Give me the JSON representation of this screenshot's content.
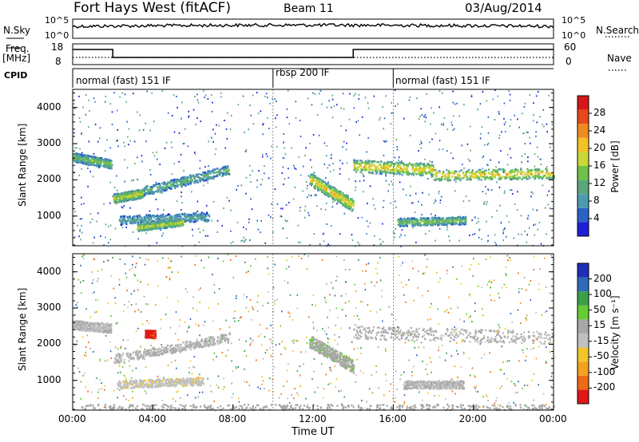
{
  "header": {
    "radar": "Fort Hays West (fitACF)",
    "beam": "Beam 11",
    "date": "03/Aug/2014"
  },
  "top_panels": {
    "nsky_label": "N.Sky",
    "nsearch_label": "N.Search",
    "noise_ticks_left": [
      "10^5",
      "10^0"
    ],
    "noise_ticks_right": [
      "10^5",
      "10^0"
    ],
    "freq_label_1": "Freq.",
    "freq_label_2": "[MHz]",
    "freq_ticks": [
      "18",
      "8"
    ],
    "nave_label": "Nave",
    "nave_ticks": [
      "60",
      "0"
    ],
    "cpid_label": "CPID",
    "cpid_segments": [
      {
        "label": "normal (fast) 151 IF",
        "start_hour": 0
      },
      {
        "label": "rbsp 200 IF",
        "start_hour": 10
      },
      {
        "label": "normal (fast) 151 IF",
        "start_hour": 16
      }
    ]
  },
  "colors": {
    "power": [
      "#1f1fd9",
      "#2a62c8",
      "#4c9ab0",
      "#5aa87a",
      "#6fc14a",
      "#c8d838",
      "#f2c224",
      "#f08a1e",
      "#e8481a",
      "#d81818"
    ],
    "velocity": [
      "#e01818",
      "#ee6a14",
      "#f2a21e",
      "#f2c628",
      "#c0c0c0",
      "#a8a8a8",
      "#66cc33",
      "#3aa04a",
      "#2c6aba",
      "#1f2fb8"
    ]
  },
  "chart_data": [
    {
      "type": "heatmap",
      "name_note": "Power panel",
      "xlabel": "",
      "ylabel": "Slant Range [km]",
      "xlim": [
        0,
        24
      ],
      "ylim": [
        180,
        4500
      ],
      "yticks": [
        "1000",
        "2000",
        "3000",
        "4000"
      ],
      "colorbar_label": "Power [dB]",
      "colorbar_ticks": [
        "4",
        "8",
        "12",
        "16",
        "20",
        "24",
        "28"
      ],
      "colorbar_range": [
        0,
        30
      ],
      "features": [
        {
          "t": [
            0.0,
            1.9
          ],
          "range_start": 2650,
          "range_end": 2450,
          "width": 250,
          "value": 14
        },
        {
          "t": [
            2.0,
            3.5
          ],
          "range_start": 1500,
          "range_end": 1650,
          "width": 250,
          "value": 18
        },
        {
          "t": [
            3.5,
            7.8
          ],
          "range_start": 1700,
          "range_end": 2300,
          "width": 250,
          "value": 12
        },
        {
          "t": [
            2.3,
            6.8
          ],
          "range_start": 900,
          "range_end": 1000,
          "width": 250,
          "value": 10
        },
        {
          "t": [
            3.2,
            5.5
          ],
          "range_start": 700,
          "range_end": 850,
          "width": 200,
          "value": 18
        },
        {
          "t": [
            11.8,
            14.0
          ],
          "range_start": 2050,
          "range_end": 1300,
          "width": 350,
          "value": 20
        },
        {
          "t": [
            14.0,
            18.0
          ],
          "range_start": 2400,
          "range_end": 2300,
          "width": 350,
          "value": 20
        },
        {
          "t": [
            18.0,
            24.0
          ],
          "range_start": 2150,
          "range_end": 2200,
          "width": 300,
          "value": 20
        },
        {
          "t": [
            16.2,
            19.6
          ],
          "range_start": 850,
          "range_end": 900,
          "width": 220,
          "value": 14
        }
      ]
    },
    {
      "type": "heatmap",
      "name_note": "Velocity panel",
      "xlabel": "Time UT",
      "ylabel": "Slant Range [km]",
      "xlim": [
        0,
        24
      ],
      "ylim": [
        180,
        4500
      ],
      "xticks": [
        "00:00",
        "04:00",
        "08:00",
        "12:00",
        "16:00",
        "20:00",
        "00:00"
      ],
      "yticks": [
        "1000",
        "2000",
        "3000",
        "4000"
      ],
      "colorbar_label": "Velocity [m s⁻¹]",
      "colorbar_ticks": [
        "-200",
        "-100",
        "-50",
        "-15",
        "15",
        "50",
        "100",
        "200"
      ],
      "colorbar_range": [
        -250,
        250
      ],
      "features": [
        {
          "t": [
            0.0,
            1.9
          ],
          "range_start": 2550,
          "range_end": 2450,
          "width": 250,
          "value": 0
        },
        {
          "t": [
            2.0,
            7.8
          ],
          "range_start": 1600,
          "range_end": 2200,
          "width": 250,
          "value": 0
        },
        {
          "t": [
            3.6,
            4.1
          ],
          "range_start": 2300,
          "range_end": 2300,
          "width": 200,
          "value": -210
        },
        {
          "t": [
            2.2,
            6.5
          ],
          "range_start": 900,
          "range_end": 1000,
          "width": 220,
          "value": -40
        },
        {
          "t": [
            11.8,
            14.0
          ],
          "range_start": 2100,
          "range_end": 1400,
          "width": 350,
          "value": 40
        },
        {
          "t": [
            14.0,
            24.0
          ],
          "range_start": 2350,
          "range_end": 2200,
          "width": 350,
          "value": 0
        },
        {
          "t": [
            16.5,
            19.5
          ],
          "range_start": 900,
          "range_end": 900,
          "width": 220,
          "value": 0
        },
        {
          "t": [
            0.0,
            24.0
          ],
          "range_start": 280,
          "range_end": 280,
          "width": 150,
          "value": 30
        }
      ]
    }
  ]
}
